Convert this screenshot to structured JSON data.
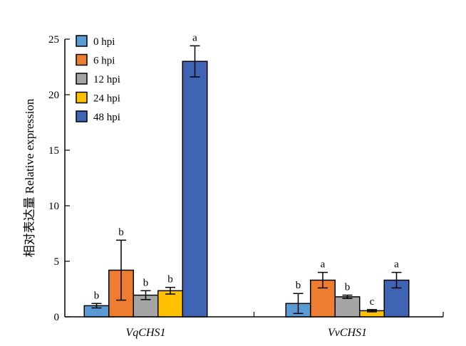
{
  "chart_data": {
    "type": "bar",
    "categories": [
      "VqCHS1",
      "VvCHS1"
    ],
    "ylabel": "相对表达量 Relative expression",
    "xlabel": "",
    "ylim": [
      0,
      25
    ],
    "yticks": [
      0,
      5,
      10,
      15,
      20,
      25
    ],
    "grid": false,
    "legend_position": "top-left",
    "series": [
      {
        "name": "0 hpi",
        "color": "#5b9bd5",
        "values": [
          1.0,
          1.2
        ],
        "errors": [
          0.2,
          0.9
        ],
        "significance": [
          "b",
          "b"
        ]
      },
      {
        "name": "6 hpi",
        "color": "#ed7d31",
        "values": [
          4.2,
          3.3
        ],
        "errors": [
          2.7,
          0.7
        ],
        "significance": [
          "b",
          "a"
        ]
      },
      {
        "name": "12 hpi",
        "color": "#a5a5a5",
        "values": [
          1.95,
          1.8
        ],
        "errors": [
          0.4,
          0.15
        ],
        "significance": [
          "b",
          "b"
        ]
      },
      {
        "name": "24 hpi",
        "color": "#ffc000",
        "values": [
          2.35,
          0.55
        ],
        "errors": [
          0.3,
          0.1
        ],
        "significance": [
          "b",
          "c"
        ]
      },
      {
        "name": "48 hpi",
        "color": "#3f64b3",
        "values": [
          23.0,
          3.3
        ],
        "errors": [
          1.4,
          0.7
        ],
        "significance": [
          "a",
          "a"
        ]
      }
    ]
  }
}
